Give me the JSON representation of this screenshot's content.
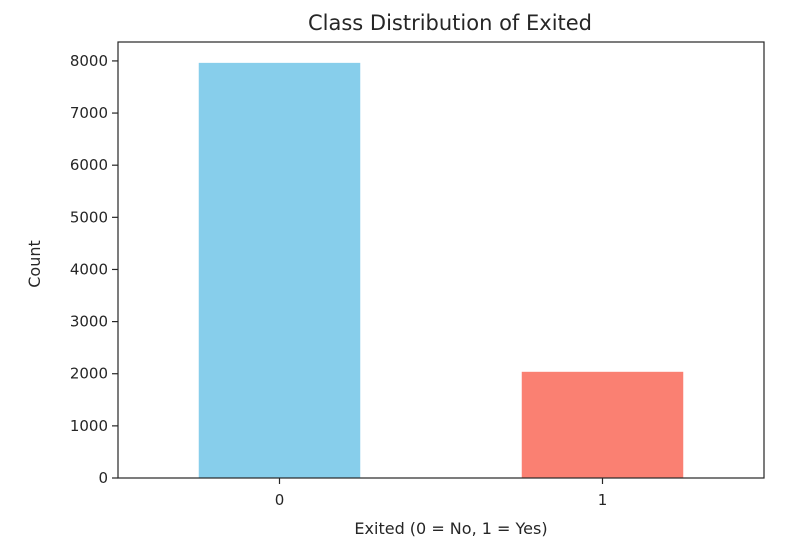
{
  "chart_data": {
    "type": "bar",
    "title": "Class Distribution of Exited",
    "xlabel": "Exited (0 = No, 1 = Yes)",
    "ylabel": "Count",
    "categories": [
      "0",
      "1"
    ],
    "values": [
      7963,
      2037
    ],
    "ylim": [
      0,
      8363
    ],
    "yticks": [
      0,
      1000,
      2000,
      3000,
      4000,
      5000,
      6000,
      7000,
      8000
    ],
    "bar_colors": [
      "#87ceeb",
      "#fa8072"
    ],
    "grid": false,
    "legend": "none"
  }
}
